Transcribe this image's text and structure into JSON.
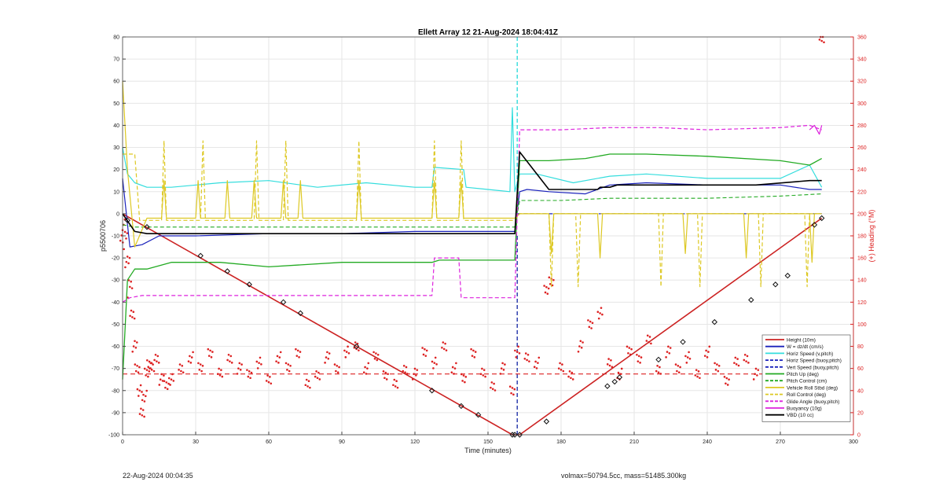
{
  "chart_data": {
    "type": "line",
    "title": "Ellett Array 12 21-Aug-2024 18:04:41Z",
    "xlabel": "Time (minutes)",
    "ylabel": "p5500706",
    "y2label": "(+) Heading (°M)",
    "xlim": [
      0,
      300
    ],
    "ylim": [
      -100,
      80
    ],
    "y2lim": [
      0,
      360
    ],
    "xticks": [
      0,
      30,
      60,
      90,
      120,
      150,
      180,
      210,
      240,
      270,
      300
    ],
    "yticks": [
      -100,
      -90,
      -80,
      -70,
      -60,
      -50,
      -40,
      -30,
      -20,
      -10,
      0,
      10,
      20,
      30,
      40,
      50,
      60,
      70,
      80
    ],
    "y2ticks": [
      0,
      20,
      40,
      60,
      80,
      100,
      120,
      140,
      160,
      180,
      200,
      220,
      240,
      260,
      280,
      300,
      320,
      340,
      360
    ],
    "grid": true,
    "legend_position": "bottom-right",
    "vertical_lines": [
      {
        "x": 162,
        "color": "#33dddd",
        "style": "dashed",
        "from": 0,
        "to": 80
      },
      {
        "x": 162,
        "color": "#2233aa",
        "style": "dashed",
        "from": -100,
        "to": -10
      }
    ],
    "series": [
      {
        "name": "Height (10m)",
        "color": "#cc2222",
        "style": "solid",
        "width": 1.6,
        "x": [
          0,
          160,
          163,
          287
        ],
        "y": [
          0,
          -100,
          -100,
          -2
        ]
      },
      {
        "name": "W = dz/dt (cm/s)",
        "color": "#1a22bb",
        "style": "solid",
        "width": 1.2,
        "x": [
          0,
          3,
          8,
          15,
          30,
          60,
          90,
          120,
          140,
          155,
          161,
          163,
          166,
          175,
          190,
          200,
          215,
          240,
          270,
          282,
          287
        ],
        "y": [
          16,
          -15,
          -14,
          -10,
          -10,
          -9,
          -9,
          -8,
          -8,
          -8,
          -8,
          10,
          11,
          10,
          9,
          13,
          14,
          13,
          13,
          11,
          11
        ]
      },
      {
        "name": "Horiz Speed (v,pitch)",
        "color": "#33dddd",
        "style": "solid",
        "width": 1.2,
        "x": [
          0,
          2,
          5,
          10,
          20,
          40,
          60,
          80,
          100,
          120,
          127,
          128,
          140,
          141,
          150,
          159,
          160,
          161,
          163,
          170,
          185,
          200,
          215,
          240,
          270,
          282,
          287
        ],
        "y": [
          30,
          18,
          14,
          12,
          12,
          14,
          15,
          12,
          14,
          12,
          12,
          21,
          20,
          12,
          11,
          10,
          48,
          10,
          18,
          18,
          14,
          17,
          18,
          16,
          16,
          22,
          12
        ]
      },
      {
        "name": "Horiz Speed (buoy,pitch)",
        "color": "#1a22bb",
        "style": "dashed",
        "width": 1.1,
        "x": [
          162,
          200,
          287
        ],
        "y": [
          0,
          0,
          0
        ]
      },
      {
        "name": "Vert Speed (buoy,pitch)",
        "color": "#1a22bb",
        "style": "dashed",
        "width": 1.1,
        "x": [
          162,
          287
        ],
        "y": [
          0,
          0
        ]
      },
      {
        "name": "Pitch Up (deg)",
        "color": "#22aa22",
        "style": "solid",
        "width": 1.3,
        "x": [
          0,
          2,
          5,
          10,
          20,
          40,
          60,
          90,
          120,
          127,
          130,
          140,
          155,
          161,
          163,
          175,
          190,
          200,
          215,
          240,
          270,
          282,
          287
        ],
        "y": [
          -75,
          -30,
          -25,
          -25,
          -22,
          -22,
          -24,
          -22,
          -22,
          -22,
          -21,
          -21,
          -21,
          -21,
          24,
          24,
          25,
          27,
          27,
          26,
          24,
          22,
          25
        ]
      },
      {
        "name": "Pitch Control (cm)",
        "color": "#22aa22",
        "style": "dashed",
        "width": 1.1,
        "x": [
          0,
          5,
          10,
          30,
          60,
          90,
          120,
          150,
          161,
          163,
          180,
          200,
          220,
          240,
          270,
          287
        ],
        "y": [
          -5,
          -6,
          -6,
          -6,
          -6,
          -6,
          -6,
          -6,
          -6,
          6,
          6,
          7,
          7,
          7,
          8,
          9
        ]
      },
      {
        "name": "Vehicle Roll Stbd (deg)",
        "color": "#ddc822",
        "style": "solid",
        "width": 1.2,
        "x": [
          0,
          2,
          5,
          10,
          16,
          17,
          18,
          30,
          31,
          32,
          42,
          43,
          44,
          53,
          54,
          55,
          65,
          66,
          67,
          72,
          73,
          74,
          96,
          97,
          98,
          127,
          128,
          129,
          138,
          139,
          140,
          155,
          161,
          163,
          175,
          176,
          177,
          195,
          196,
          197,
          230,
          231,
          232,
          255,
          256,
          257,
          282,
          283,
          284,
          287
        ],
        "y": [
          60,
          20,
          -15,
          -2,
          -2,
          15,
          -2,
          -2,
          15,
          -2,
          -2,
          15,
          -2,
          -2,
          15,
          -2,
          -2,
          15,
          -2,
          -2,
          15,
          -2,
          -2,
          15,
          -2,
          -2,
          15,
          -2,
          -2,
          15,
          -2,
          -2,
          -2,
          0,
          0,
          -18,
          0,
          0,
          -20,
          0,
          0,
          -18,
          0,
          0,
          -20,
          0,
          0,
          -22,
          0,
          0
        ]
      },
      {
        "name": "Roll Control (deg)",
        "color": "#ddc822",
        "style": "dashed",
        "width": 1.2,
        "x": [
          0,
          5,
          7,
          8,
          16,
          17,
          18,
          32,
          33,
          34,
          54,
          55,
          56,
          66,
          67,
          68,
          96,
          97,
          98,
          127,
          128,
          129,
          138,
          139,
          140,
          155,
          161,
          163,
          175,
          176,
          177,
          186,
          187,
          188,
          220,
          221,
          222,
          236,
          237,
          238,
          261,
          262,
          263,
          280,
          281,
          282,
          287
        ],
        "y": [
          27,
          27,
          -3,
          -3,
          -3,
          33,
          -3,
          -3,
          33,
          -3,
          -3,
          33,
          -3,
          -3,
          33,
          -3,
          -3,
          33,
          -3,
          -3,
          33,
          -3,
          -3,
          33,
          -3,
          -3,
          -3,
          0,
          0,
          -33,
          0,
          0,
          -33,
          0,
          0,
          -33,
          0,
          0,
          -33,
          0,
          0,
          -33,
          0,
          0,
          -33,
          0,
          0
        ]
      },
      {
        "name": "Glide Angle (buoy,pitch)",
        "color": "#dd22dd",
        "style": "dashed",
        "width": 1.2,
        "x": [
          0,
          3,
          8,
          20,
          40,
          60,
          90,
          120,
          127,
          128,
          138,
          139,
          140,
          150,
          157,
          159,
          161,
          163,
          180,
          200,
          220,
          240,
          270,
          282,
          287
        ],
        "y": [
          -40,
          -38,
          -37,
          -37,
          -37,
          -37,
          -37,
          -37,
          -37,
          -20,
          -20,
          -38,
          -38,
          -38,
          -38,
          -38,
          -38,
          38,
          38,
          39,
          39,
          38,
          39,
          40,
          38
        ]
      },
      {
        "name": "Buoyancy (10g)",
        "color": "#dd22dd",
        "style": "solid",
        "width": 1.2,
        "x": [
          282,
          284,
          286,
          287
        ],
        "y": [
          38,
          40,
          36,
          40
        ]
      },
      {
        "name": "VBD (10 cc)",
        "color": "#000000",
        "style": "solid",
        "width": 1.6,
        "x": [
          0,
          5,
          10,
          30,
          60,
          90,
          120,
          150,
          161,
          163,
          175,
          190,
          195,
          196,
          200,
          203,
          230,
          260,
          282,
          287
        ],
        "y": [
          0,
          -8,
          -9,
          -9,
          -9,
          -9,
          -9,
          -9,
          -9,
          28,
          11,
          11,
          11,
          12,
          12,
          13,
          13,
          13,
          15,
          15
        ]
      }
    ],
    "heading": {
      "name": "(+) Heading (°M)",
      "color": "#dd2222",
      "markers": "dots",
      "x": [
        0,
        1,
        2,
        3,
        4,
        5,
        6,
        7,
        8,
        9,
        10,
        11,
        12,
        14,
        16,
        18,
        20,
        24,
        28,
        32,
        36,
        40,
        44,
        48,
        52,
        56,
        60,
        64,
        68,
        72,
        76,
        80,
        84,
        88,
        92,
        96,
        100,
        104,
        108,
        112,
        116,
        120,
        124,
        128,
        132,
        136,
        140,
        144,
        148,
        152,
        156,
        160,
        162,
        166,
        170,
        174,
        176,
        180,
        184,
        188,
        192,
        196,
        200,
        204,
        208,
        212,
        216,
        220,
        224,
        228,
        232,
        236,
        240,
        244,
        248,
        252,
        256,
        260,
        264,
        268,
        272,
        276,
        280,
        284,
        286,
        287
      ],
      "y": [
        190,
        180,
        160,
        135,
        110,
        80,
        60,
        40,
        20,
        35,
        55,
        65,
        60,
        70,
        50,
        45,
        50,
        60,
        70,
        60,
        75,
        55,
        70,
        60,
        55,
        65,
        50,
        70,
        60,
        75,
        45,
        55,
        70,
        60,
        75,
        80,
        60,
        70,
        55,
        45,
        60,
        55,
        75,
        65,
        80,
        60,
        50,
        75,
        55,
        45,
        60,
        40,
        75,
        70,
        65,
        130,
        140,
        60,
        55,
        80,
        100,
        110,
        65,
        55,
        75,
        70,
        85,
        60,
        75,
        60,
        70,
        55,
        75,
        60,
        50,
        65,
        70,
        55,
        60,
        70,
        55,
        60,
        70,
        50,
        35,
        360
      ]
    },
    "height_markers": {
      "x": [
        2,
        10,
        32,
        43,
        52,
        66,
        73,
        96,
        127,
        139,
        146,
        160,
        161,
        163,
        174,
        199,
        202,
        204,
        220,
        230,
        243,
        258,
        268,
        273,
        284,
        287
      ],
      "y": [
        -3,
        -6,
        -19,
        -26,
        -32,
        -40,
        -45,
        -60,
        -80,
        -87,
        -91,
        -100,
        -100,
        -100,
        -94,
        -78,
        -76,
        -74,
        -66,
        -58,
        -49,
        -39,
        -32,
        -28,
        -5,
        -2
      ]
    }
  },
  "footer": {
    "left_text": "22-Aug-2024 00:04:35",
    "right_text": "volmax=50794.5cc, mass=51485.300kg"
  }
}
